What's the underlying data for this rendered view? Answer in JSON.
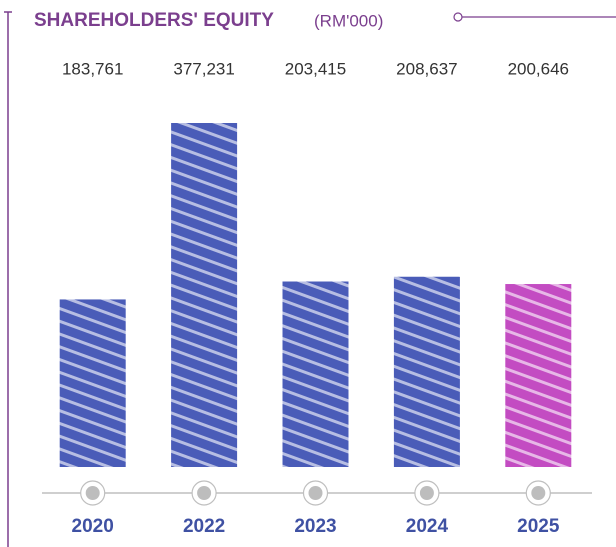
{
  "chart_data": {
    "type": "bar",
    "title": "SHAREHOLDERS' EQUITY",
    "subtitle": "(RM'000)",
    "categories": [
      "2020",
      "2022",
      "2023",
      "2024",
      "2025"
    ],
    "values": [
      183761,
      377231,
      203415,
      208637,
      200646
    ],
    "value_labels": [
      "183,761",
      "377,231",
      "203,415",
      "208,637",
      "200,646"
    ],
    "colors": [
      "#4a5cb8",
      "#4a5cb8",
      "#4a5cb8",
      "#4a5cb8",
      "#c34cc2"
    ]
  }
}
